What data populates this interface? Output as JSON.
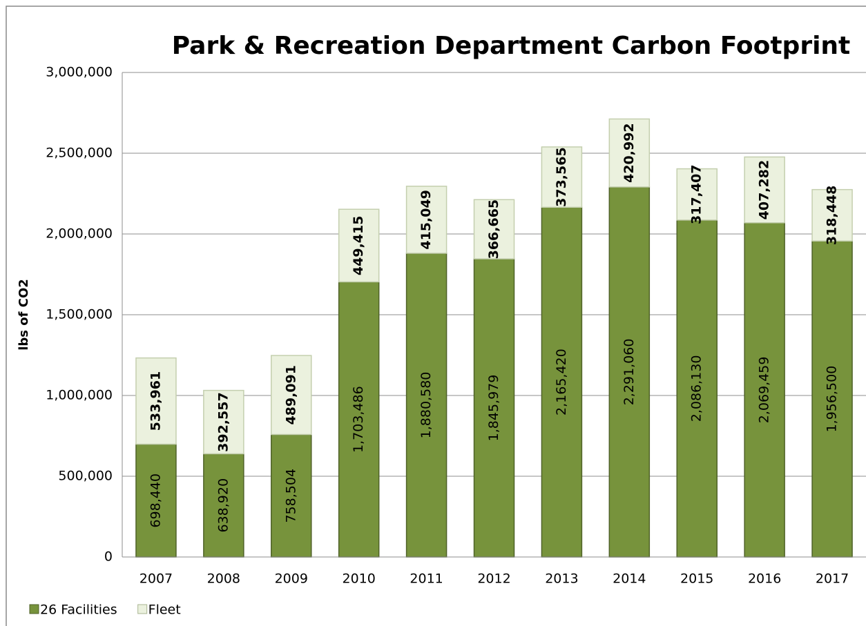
{
  "chart_data": {
    "type": "stacked_bar",
    "title": "Park & Recreation Department Carbon Footprint",
    "y_label": "lbs of CO2",
    "categories": [
      "2007",
      "2008",
      "2009",
      "2010",
      "2011",
      "2012",
      "2013",
      "2014",
      "2015",
      "2016",
      "2017"
    ],
    "series": [
      {
        "name": "26 Facilities",
        "color": "#77933c",
        "values": [
          698440,
          638920,
          758504,
          1703486,
          1880580,
          1845979,
          2165420,
          2291060,
          2086130,
          2069459,
          1956500
        ],
        "value_labels": [
          "698,440",
          "638,920",
          "758,504",
          "1,703,486",
          "1,880,580",
          "1,845,979",
          "2,165,420",
          "2,291,060",
          "2,086,130",
          "2,069,459",
          "1,956,500"
        ]
      },
      {
        "name": "Fleet",
        "color": "#ebf1de",
        "values": [
          533961,
          392557,
          489091,
          449415,
          415049,
          366665,
          373565,
          420992,
          317407,
          407282,
          318448
        ],
        "value_labels": [
          "533,961",
          "392,557",
          "489,091",
          "449,415",
          "415,049",
          "366,665",
          "373,565",
          "420,992",
          "317,407",
          "407,282",
          "318,448"
        ]
      }
    ],
    "ylim": [
      0,
      3000000
    ],
    "yticks": [
      0,
      {
        "value": 500000,
        "label": "500,000"
      },
      {
        "value": 1000000,
        "label": "1,000,000"
      },
      {
        "value": 1500000,
        "label": "1,500,000"
      },
      {
        "value": 2000000,
        "label": "2,000,000"
      },
      {
        "value": 2500000,
        "label": "2,500,000"
      },
      {
        "value": 3000000,
        "label": "3,000,000"
      }
    ],
    "grid": true,
    "legend": "bottom-left"
  }
}
